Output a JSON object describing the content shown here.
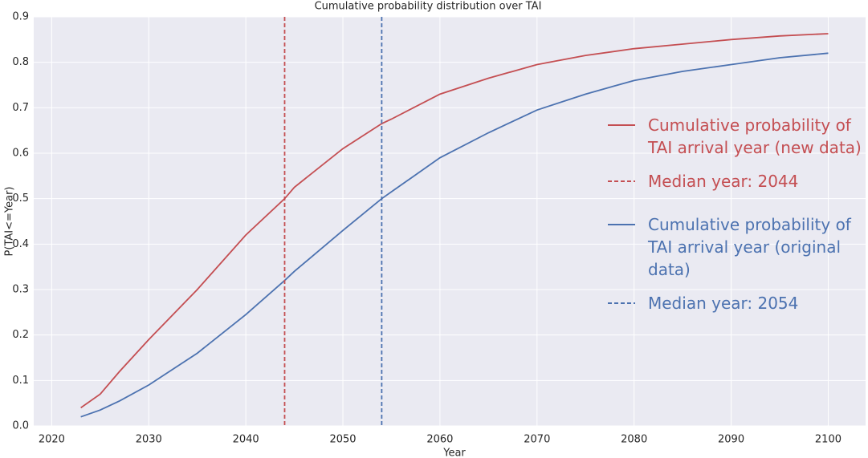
{
  "chart_data": {
    "type": "line",
    "title": "Cumulative probability distribution over TAI",
    "xlabel": "Year",
    "ylabel": "P(TAI<=Year)",
    "x": [
      2023,
      2025,
      2027,
      2030,
      2035,
      2040,
      2044,
      2045,
      2050,
      2054,
      2055,
      2060,
      2065,
      2070,
      2075,
      2080,
      2085,
      2090,
      2095,
      2100
    ],
    "series": [
      {
        "name": "Cumulative probability of TAI arrival year (new data)",
        "color": "#c44e52",
        "values": [
          0.04,
          0.07,
          0.12,
          0.19,
          0.3,
          0.42,
          0.5,
          0.525,
          0.61,
          0.665,
          0.675,
          0.73,
          0.765,
          0.795,
          0.815,
          0.83,
          0.84,
          0.85,
          0.858,
          0.863
        ]
      },
      {
        "name": "Cumulative probability of TAI arrival year (original data)",
        "color": "#4c72b0",
        "values": [
          0.02,
          0.035,
          0.055,
          0.09,
          0.16,
          0.245,
          0.32,
          0.34,
          0.43,
          0.5,
          0.515,
          0.59,
          0.645,
          0.695,
          0.73,
          0.76,
          0.78,
          0.795,
          0.81,
          0.82
        ]
      }
    ],
    "vlines": [
      {
        "x": 2044,
        "name": "Median year: 2044",
        "color": "#c44e52"
      },
      {
        "x": 2054,
        "name": "Median year: 2054",
        "color": "#4c72b0"
      }
    ],
    "xlim": [
      2018.15,
      2103.85
    ],
    "ylim": [
      0,
      0.9
    ],
    "xticks": [
      2020,
      2030,
      2040,
      2050,
      2060,
      2070,
      2080,
      2090,
      2100
    ],
    "yticks": [
      {
        "value": 0,
        "label": "0.0"
      },
      0.1,
      0.2,
      0.3,
      0.4,
      0.5,
      0.6,
      0.7,
      0.8,
      0.9
    ],
    "grid": true
  }
}
